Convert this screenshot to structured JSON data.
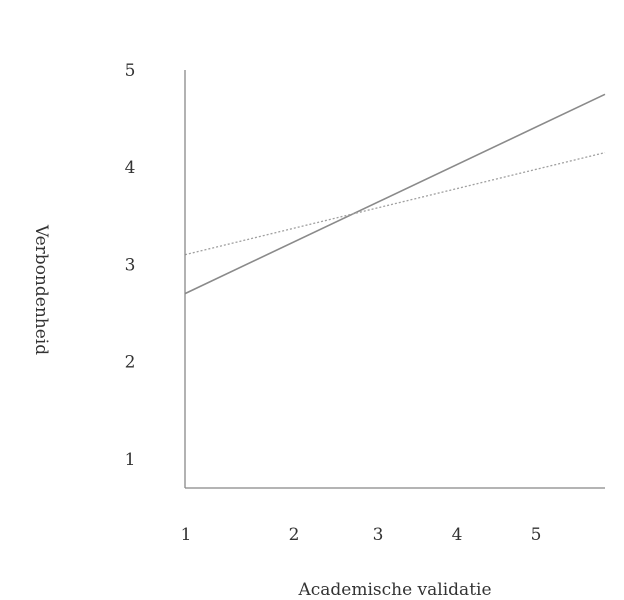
{
  "chart_data": {
    "type": "line",
    "xlabel": "Academische validatie",
    "ylabel": "Verbondenheid",
    "xlim": [
      1,
      6
    ],
    "ylim": [
      0.7,
      5
    ],
    "x_ticks": [
      1,
      2,
      3,
      4,
      5
    ],
    "y_ticks": [
      1,
      2,
      3,
      4,
      5
    ],
    "grid": false,
    "series": [
      {
        "style": "solid",
        "x": [
          1,
          6
        ],
        "y": [
          2.7,
          4.75
        ],
        "color": "#8a8a8a"
      },
      {
        "style": "dotted",
        "x": [
          1,
          6
        ],
        "y": [
          3.1,
          4.15
        ],
        "color": "#a0a0a0"
      }
    ],
    "axis_color": "#888888"
  }
}
